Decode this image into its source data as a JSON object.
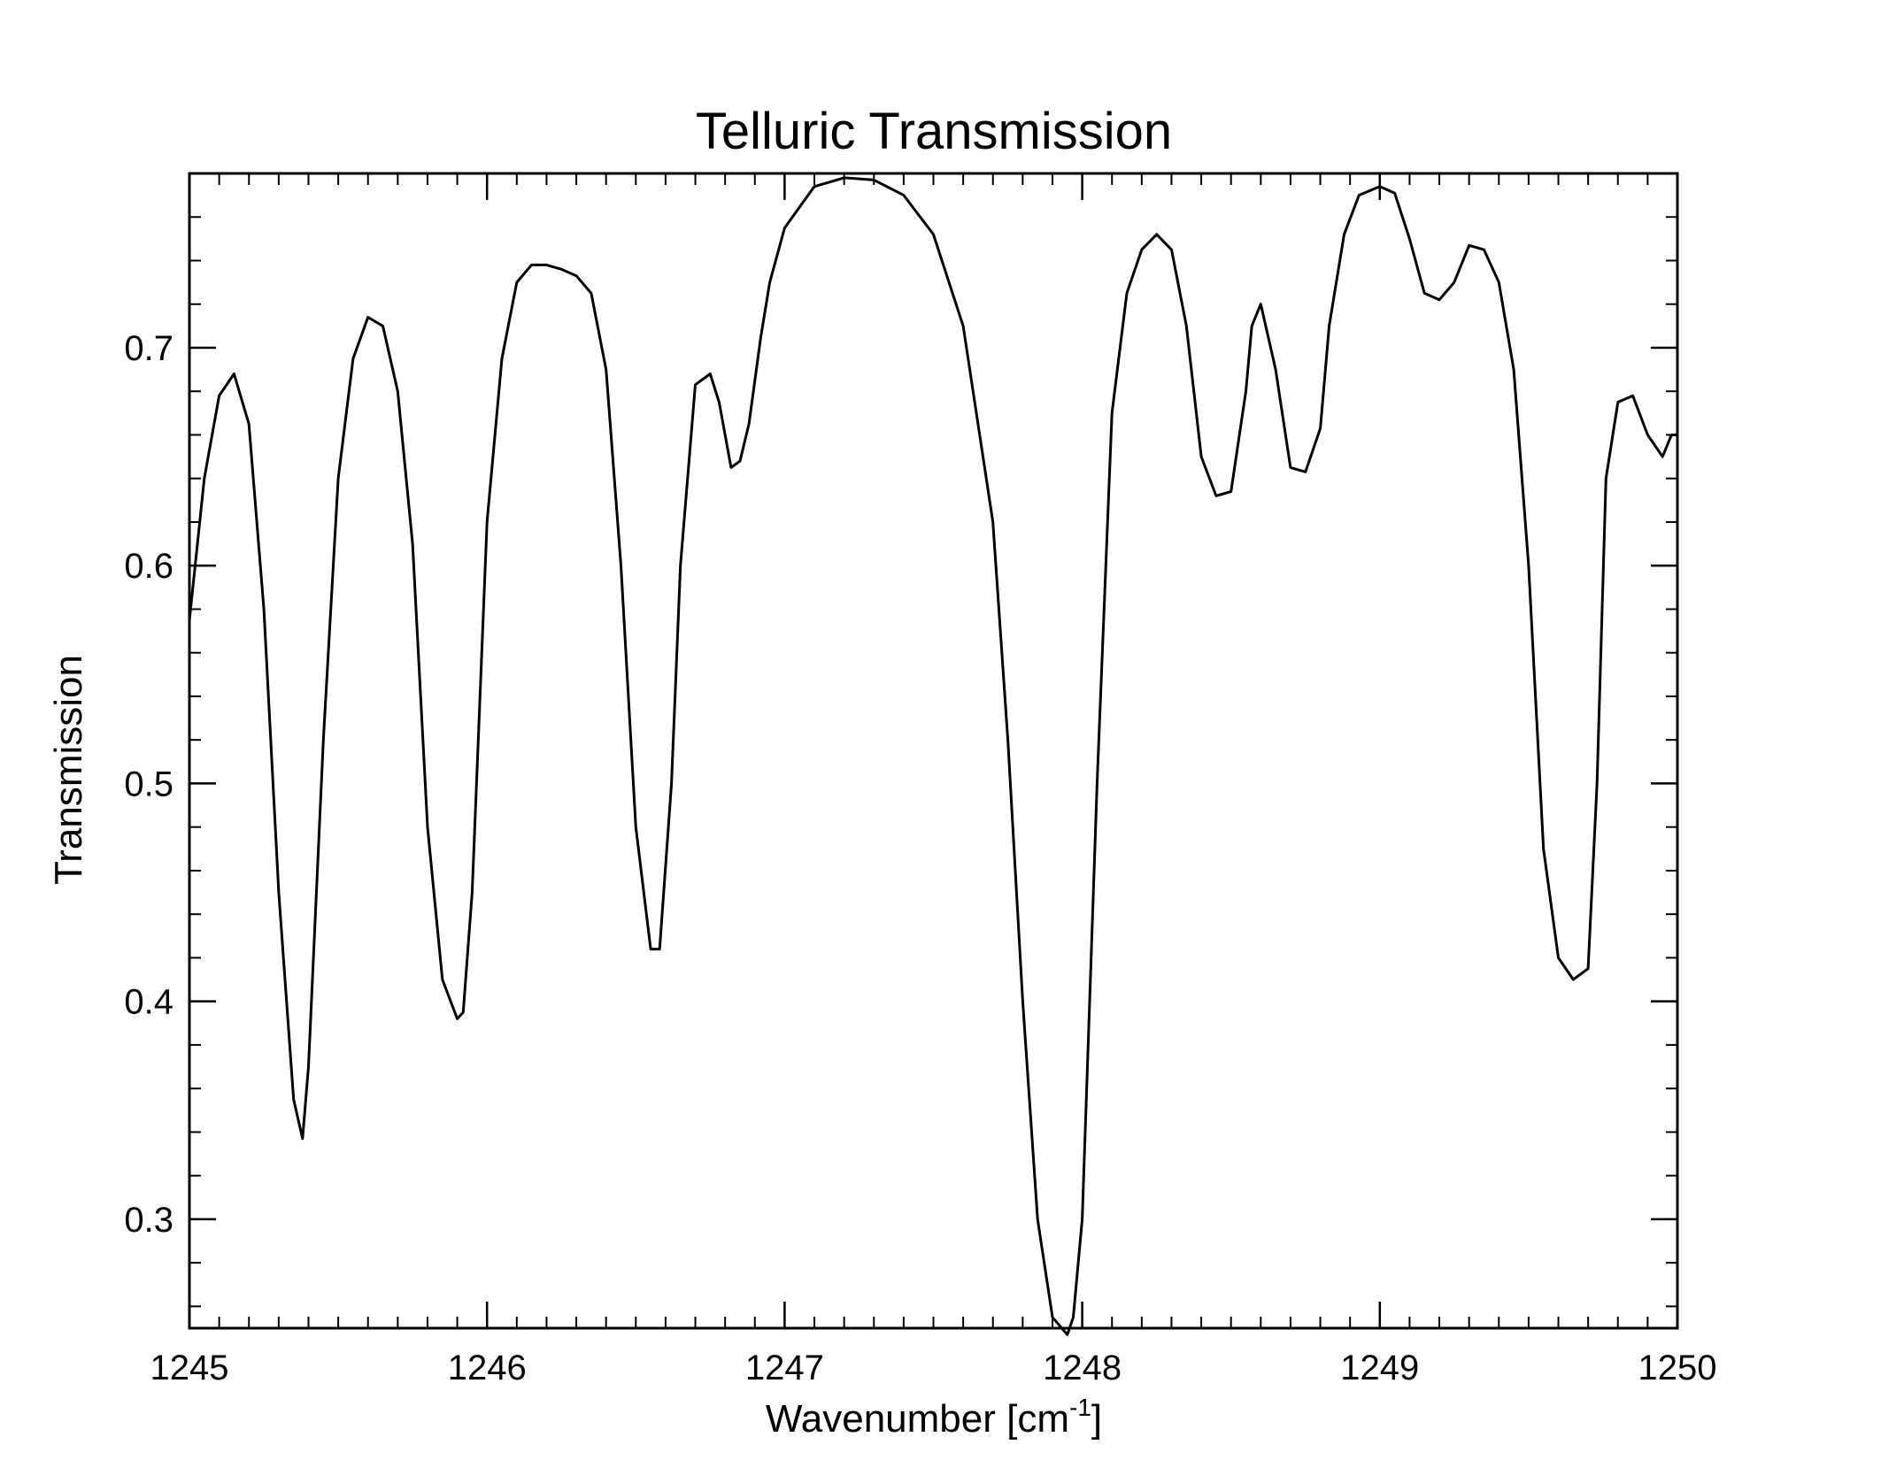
{
  "chart_data": {
    "type": "line",
    "title": "Telluric Transmission",
    "xlabel": "Wavenumber [cm",
    "xlabel_sup": "-1",
    "xlabel_suffix": "]",
    "ylabel": "Transmission",
    "xlim": [
      1245,
      1250
    ],
    "ylim": [
      0.25,
      0.78
    ],
    "xticks": [
      1245,
      1246,
      1247,
      1248,
      1249,
      1250
    ],
    "xtick_labels": [
      "1245",
      "1246",
      "1247",
      "1248",
      "1249",
      "1250"
    ],
    "yticks": [
      0.3,
      0.4,
      0.5,
      0.6,
      0.7
    ],
    "ytick_labels": [
      "0.3",
      "0.4",
      "0.5",
      "0.6",
      "0.7"
    ],
    "x_minor_step": 0.1,
    "y_minor_step": 0.02,
    "grid": false,
    "line_color": "#000000",
    "series": [
      {
        "x": [
          1245.0,
          1245.05,
          1245.1,
          1245.15,
          1245.2,
          1245.25,
          1245.3,
          1245.35,
          1245.38,
          1245.4,
          1245.45,
          1245.5,
          1245.55,
          1245.6,
          1245.65,
          1245.7,
          1245.75,
          1245.8,
          1245.85,
          1245.9,
          1245.92,
          1245.95,
          1246.0,
          1246.05,
          1246.1,
          1246.15,
          1246.2,
          1246.25,
          1246.3,
          1246.35,
          1246.4,
          1246.45,
          1246.5,
          1246.55,
          1246.58,
          1246.62,
          1246.65,
          1246.7,
          1246.75,
          1246.78,
          1246.82,
          1246.85,
          1246.88,
          1246.92,
          1246.95,
          1247.0,
          1247.1,
          1247.2,
          1247.3,
          1247.4,
          1247.5,
          1247.6,
          1247.7,
          1247.75,
          1247.8,
          1247.85,
          1247.9,
          1247.95,
          1247.97,
          1248.0,
          1248.05,
          1248.1,
          1248.15,
          1248.2,
          1248.25,
          1248.3,
          1248.35,
          1248.4,
          1248.45,
          1248.5,
          1248.55,
          1248.57,
          1248.6,
          1248.65,
          1248.7,
          1248.75,
          1248.8,
          1248.83,
          1248.88,
          1248.93,
          1249.0,
          1249.05,
          1249.1,
          1249.15,
          1249.2,
          1249.25,
          1249.3,
          1249.35,
          1249.4,
          1249.45,
          1249.5,
          1249.55,
          1249.6,
          1249.65,
          1249.7,
          1249.73,
          1249.76,
          1249.8,
          1249.85,
          1249.9,
          1249.95,
          1249.98,
          1250.0
        ],
        "y": [
          0.575,
          0.64,
          0.678,
          0.688,
          0.665,
          0.58,
          0.45,
          0.355,
          0.337,
          0.37,
          0.52,
          0.64,
          0.695,
          0.714,
          0.71,
          0.68,
          0.61,
          0.48,
          0.41,
          0.392,
          0.395,
          0.45,
          0.62,
          0.695,
          0.73,
          0.738,
          0.738,
          0.736,
          0.733,
          0.725,
          0.69,
          0.6,
          0.48,
          0.424,
          0.424,
          0.5,
          0.6,
          0.683,
          0.688,
          0.675,
          0.645,
          0.648,
          0.665,
          0.705,
          0.73,
          0.755,
          0.774,
          0.778,
          0.777,
          0.77,
          0.752,
          0.71,
          0.62,
          0.52,
          0.4,
          0.3,
          0.255,
          0.247,
          0.255,
          0.3,
          0.5,
          0.67,
          0.725,
          0.745,
          0.752,
          0.745,
          0.71,
          0.65,
          0.632,
          0.634,
          0.68,
          0.71,
          0.72,
          0.69,
          0.645,
          0.643,
          0.663,
          0.71,
          0.752,
          0.77,
          0.774,
          0.771,
          0.75,
          0.725,
          0.722,
          0.73,
          0.747,
          0.745,
          0.73,
          0.69,
          0.6,
          0.47,
          0.42,
          0.41,
          0.415,
          0.5,
          0.64,
          0.675,
          0.678,
          0.66,
          0.65,
          0.66,
          0.66
        ]
      }
    ]
  }
}
